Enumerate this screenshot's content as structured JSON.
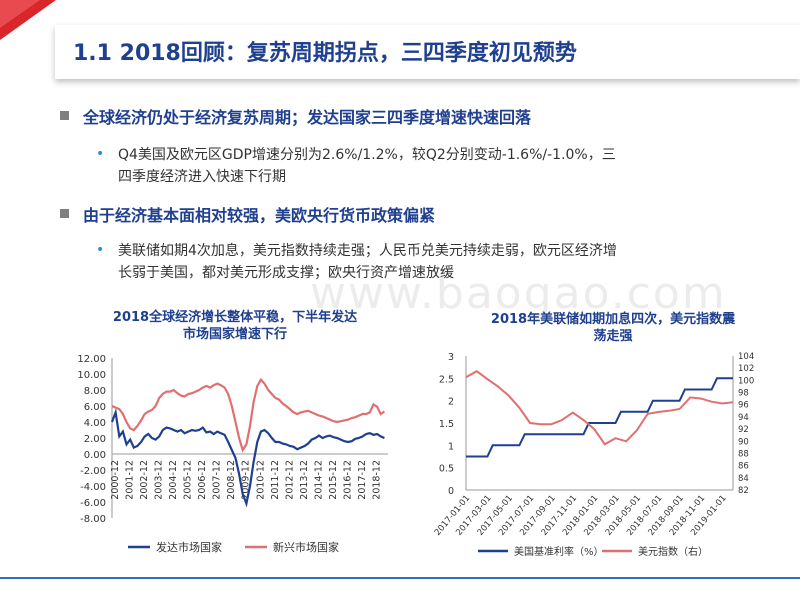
{
  "header": {
    "title": "1.1 2018回顾：复苏周期拐点，三四季度初见颓势"
  },
  "bullets": [
    {
      "heading": "全球经济仍处于经济复苏周期；发达国家三四季度增速快速回落",
      "lines": [
        "Q4美国及欧元区GDP增速分别为2.6%/1.2%，较Q2分别变动-1.6%/-1.0%，三",
        "四季度经济进入快速下行期"
      ]
    },
    {
      "heading": "由于经济基本面相对较强，美欧央行货币政策偏紧",
      "lines": [
        "美联储如期4次加息，美元指数持续走强；人民币兑美元持续走弱，欧元区经济增",
        "长弱于美国，都对美元形成支撑；欧央行资产增速放缓"
      ]
    }
  ],
  "watermark": "www.baogao.com",
  "colors": {
    "accent_red": "#d9262b",
    "title_blue": "#1f3f8f",
    "series_blue": "#1f3f8f",
    "series_pink": "#e07070"
  },
  "chart_data": [
    {
      "type": "line",
      "title_lines": [
        "2018全球经济增长整体平稳，下半年发达",
        "市场国家增速下行"
      ],
      "y_ticks": [
        "12.00",
        "10.00",
        "8.00",
        "6.00",
        "4.00",
        "2.00",
        "0.00",
        "-2.00",
        "-4.00",
        "-6.00",
        "-8.00"
      ],
      "ylim": [
        -8,
        12
      ],
      "x_labels": [
        "2000-12",
        "2001-12",
        "2002-12",
        "2003-12",
        "2004-12",
        "2005-12",
        "2006-12",
        "2007-12",
        "2008-12",
        "2009-12",
        "2010-12",
        "2011-12",
        "2012-12",
        "2013-12",
        "2014-12",
        "2015-12",
        "2016-12",
        "2017-12",
        "2018-12"
      ],
      "xlim": [
        2000,
        2019
      ],
      "series": [
        {
          "name": "发达市场国家",
          "color": "#1f3f8f",
          "points": [
            [
              2000.0,
              4.0
            ],
            [
              2000.25,
              5.2
            ],
            [
              2000.5,
              2.2
            ],
            [
              2000.75,
              2.8
            ],
            [
              2001.0,
              1.2
            ],
            [
              2001.25,
              1.8
            ],
            [
              2001.5,
              0.8
            ],
            [
              2001.75,
              1.0
            ],
            [
              2002.0,
              1.5
            ],
            [
              2002.25,
              2.2
            ],
            [
              2002.5,
              2.5
            ],
            [
              2002.75,
              2.0
            ],
            [
              2003.0,
              1.8
            ],
            [
              2003.25,
              2.2
            ],
            [
              2003.5,
              3.0
            ],
            [
              2003.75,
              3.3
            ],
            [
              2004.0,
              3.2
            ],
            [
              2004.25,
              3.0
            ],
            [
              2004.5,
              2.8
            ],
            [
              2004.75,
              3.0
            ],
            [
              2005.0,
              2.6
            ],
            [
              2005.25,
              2.8
            ],
            [
              2005.5,
              3.0
            ],
            [
              2005.75,
              2.9
            ],
            [
              2006.0,
              3.0
            ],
            [
              2006.25,
              3.3
            ],
            [
              2006.5,
              2.7
            ],
            [
              2006.75,
              2.8
            ],
            [
              2007.0,
              2.5
            ],
            [
              2007.25,
              2.8
            ],
            [
              2007.5,
              2.6
            ],
            [
              2007.75,
              2.4
            ],
            [
              2008.0,
              1.5
            ],
            [
              2008.25,
              0.5
            ],
            [
              2008.5,
              -0.5
            ],
            [
              2008.75,
              -2.5
            ],
            [
              2009.0,
              -5.0
            ],
            [
              2009.25,
              -6.2
            ],
            [
              2009.5,
              -4.0
            ],
            [
              2009.75,
              -1.0
            ],
            [
              2010.0,
              1.5
            ],
            [
              2010.25,
              2.8
            ],
            [
              2010.5,
              3.0
            ],
            [
              2010.75,
              2.6
            ],
            [
              2011.0,
              2.0
            ],
            [
              2011.25,
              1.5
            ],
            [
              2011.5,
              1.5
            ],
            [
              2011.75,
              1.3
            ],
            [
              2012.0,
              1.2
            ],
            [
              2012.25,
              1.0
            ],
            [
              2012.5,
              0.9
            ],
            [
              2012.75,
              0.6
            ],
            [
              2013.0,
              0.8
            ],
            [
              2013.25,
              1.0
            ],
            [
              2013.5,
              1.3
            ],
            [
              2013.75,
              1.8
            ],
            [
              2014.0,
              2.0
            ],
            [
              2014.25,
              2.3
            ],
            [
              2014.5,
              2.0
            ],
            [
              2014.75,
              2.2
            ],
            [
              2015.0,
              2.3
            ],
            [
              2015.25,
              2.1
            ],
            [
              2015.5,
              2.0
            ],
            [
              2015.75,
              1.8
            ],
            [
              2016.0,
              1.6
            ],
            [
              2016.25,
              1.5
            ],
            [
              2016.5,
              1.6
            ],
            [
              2016.75,
              1.9
            ],
            [
              2017.0,
              2.0
            ],
            [
              2017.25,
              2.2
            ],
            [
              2017.5,
              2.5
            ],
            [
              2017.75,
              2.6
            ],
            [
              2018.0,
              2.4
            ],
            [
              2018.25,
              2.5
            ],
            [
              2018.5,
              2.2
            ],
            [
              2018.75,
              2.0
            ]
          ]
        },
        {
          "name": "新兴市场国家",
          "color": "#e07070",
          "points": [
            [
              2000.0,
              6.0
            ],
            [
              2000.25,
              5.8
            ],
            [
              2000.5,
              5.6
            ],
            [
              2000.75,
              5.0
            ],
            [
              2001.0,
              4.0
            ],
            [
              2001.25,
              3.2
            ],
            [
              2001.5,
              3.0
            ],
            [
              2001.75,
              3.5
            ],
            [
              2002.0,
              4.2
            ],
            [
              2002.25,
              5.0
            ],
            [
              2002.5,
              5.3
            ],
            [
              2002.75,
              5.5
            ],
            [
              2003.0,
              6.0
            ],
            [
              2003.25,
              7.0
            ],
            [
              2003.5,
              7.5
            ],
            [
              2003.75,
              7.8
            ],
            [
              2004.0,
              7.8
            ],
            [
              2004.25,
              8.0
            ],
            [
              2004.5,
              7.6
            ],
            [
              2004.75,
              7.3
            ],
            [
              2005.0,
              7.2
            ],
            [
              2005.25,
              7.5
            ],
            [
              2005.5,
              7.6
            ],
            [
              2005.75,
              7.8
            ],
            [
              2006.0,
              8.0
            ],
            [
              2006.25,
              8.3
            ],
            [
              2006.5,
              8.5
            ],
            [
              2006.75,
              8.3
            ],
            [
              2007.0,
              8.6
            ],
            [
              2007.25,
              8.8
            ],
            [
              2007.5,
              8.6
            ],
            [
              2007.75,
              8.3
            ],
            [
              2008.0,
              7.5
            ],
            [
              2008.25,
              6.0
            ],
            [
              2008.5,
              4.0
            ],
            [
              2008.75,
              2.0
            ],
            [
              2009.0,
              0.5
            ],
            [
              2009.25,
              1.2
            ],
            [
              2009.5,
              3.5
            ],
            [
              2009.75,
              6.5
            ],
            [
              2010.0,
              8.5
            ],
            [
              2010.25,
              9.3
            ],
            [
              2010.5,
              8.8
            ],
            [
              2010.75,
              8.0
            ],
            [
              2011.0,
              7.5
            ],
            [
              2011.25,
              7.0
            ],
            [
              2011.5,
              6.8
            ],
            [
              2011.75,
              6.3
            ],
            [
              2012.0,
              6.0
            ],
            [
              2012.25,
              5.6
            ],
            [
              2012.5,
              5.2
            ],
            [
              2012.75,
              5.0
            ],
            [
              2013.0,
              5.2
            ],
            [
              2013.25,
              5.3
            ],
            [
              2013.5,
              5.4
            ],
            [
              2013.75,
              5.2
            ],
            [
              2014.0,
              5.0
            ],
            [
              2014.25,
              4.8
            ],
            [
              2014.5,
              4.7
            ],
            [
              2014.75,
              4.5
            ],
            [
              2015.0,
              4.3
            ],
            [
              2015.25,
              4.1
            ],
            [
              2015.5,
              4.0
            ],
            [
              2015.75,
              4.1
            ],
            [
              2016.0,
              4.2
            ],
            [
              2016.25,
              4.3
            ],
            [
              2016.5,
              4.5
            ],
            [
              2016.75,
              4.6
            ],
            [
              2017.0,
              4.8
            ],
            [
              2017.25,
              5.0
            ],
            [
              2017.5,
              5.0
            ],
            [
              2017.75,
              5.2
            ],
            [
              2018.0,
              6.2
            ],
            [
              2018.25,
              5.9
            ],
            [
              2018.5,
              5.0
            ],
            [
              2018.75,
              5.3
            ]
          ]
        }
      ]
    },
    {
      "type": "line",
      "title_lines": [
        "2018年美联储如期加息四次，美元指数震",
        "荡走强"
      ],
      "y_left_ticks": [
        "3",
        "2.5",
        "2",
        "1.5",
        "1",
        "0.5",
        "0"
      ],
      "ylim_left": [
        0,
        3
      ],
      "y_right_ticks": [
        "104",
        "102",
        "100",
        "98",
        "96",
        "94",
        "92",
        "90",
        "88",
        "86",
        "84",
        "82"
      ],
      "ylim_right": [
        82,
        104
      ],
      "x_labels": [
        "2017-01-01",
        "2017-03-01",
        "2017-05-01",
        "2017-07-01",
        "2017-09-01",
        "2017-11-01",
        "2018-01-01",
        "2018-03-01",
        "2018-05-01",
        "2018-07-01",
        "2018-09-01",
        "2018-11-01",
        "2019-01-01"
      ],
      "xlim": [
        0,
        25
      ],
      "series": [
        {
          "name": "美国基准利率（%）",
          "axis": "left",
          "color": "#1f3f8f",
          "points": [
            [
              0,
              0.75
            ],
            [
              1,
              0.75
            ],
            [
              2,
              0.75
            ],
            [
              2.5,
              1.0
            ],
            [
              3,
              1.0
            ],
            [
              4,
              1.0
            ],
            [
              5,
              1.0
            ],
            [
              5.5,
              1.25
            ],
            [
              6,
              1.25
            ],
            [
              7,
              1.25
            ],
            [
              8,
              1.25
            ],
            [
              9,
              1.25
            ],
            [
              10,
              1.25
            ],
            [
              11,
              1.25
            ],
            [
              11.5,
              1.5
            ],
            [
              12,
              1.5
            ],
            [
              13,
              1.5
            ],
            [
              14,
              1.5
            ],
            [
              14.5,
              1.75
            ],
            [
              15,
              1.75
            ],
            [
              16,
              1.75
            ],
            [
              17,
              1.75
            ],
            [
              17.5,
              2.0
            ],
            [
              18,
              2.0
            ],
            [
              19,
              2.0
            ],
            [
              20,
              2.0
            ],
            [
              20.5,
              2.25
            ],
            [
              21,
              2.25
            ],
            [
              22,
              2.25
            ],
            [
              23,
              2.25
            ],
            [
              23.5,
              2.5
            ],
            [
              24,
              2.5
            ],
            [
              25,
              2.5
            ]
          ]
        },
        {
          "name": "美元指数（右）",
          "axis": "right",
          "color": "#e07070",
          "points": [
            [
              0,
              100.5
            ],
            [
              1,
              101.5
            ],
            [
              2,
              100.2
            ],
            [
              3,
              99.0
            ],
            [
              4,
              97.5
            ],
            [
              5,
              95.5
            ],
            [
              6,
              93.0
            ],
            [
              7,
              92.8
            ],
            [
              8,
              92.8
            ],
            [
              9,
              93.5
            ],
            [
              10,
              94.7
            ],
            [
              11,
              93.5
            ],
            [
              12,
              92.0
            ],
            [
              13,
              89.5
            ],
            [
              14,
              90.5
            ],
            [
              15,
              90.0
            ],
            [
              16,
              91.8
            ],
            [
              17,
              94.5
            ],
            [
              18,
              94.8
            ],
            [
              19,
              95.0
            ],
            [
              20,
              95.3
            ],
            [
              21,
              97.2
            ],
            [
              22,
              97.0
            ],
            [
              23,
              96.5
            ],
            [
              24,
              96.2
            ],
            [
              25,
              96.4
            ]
          ]
        }
      ]
    }
  ]
}
